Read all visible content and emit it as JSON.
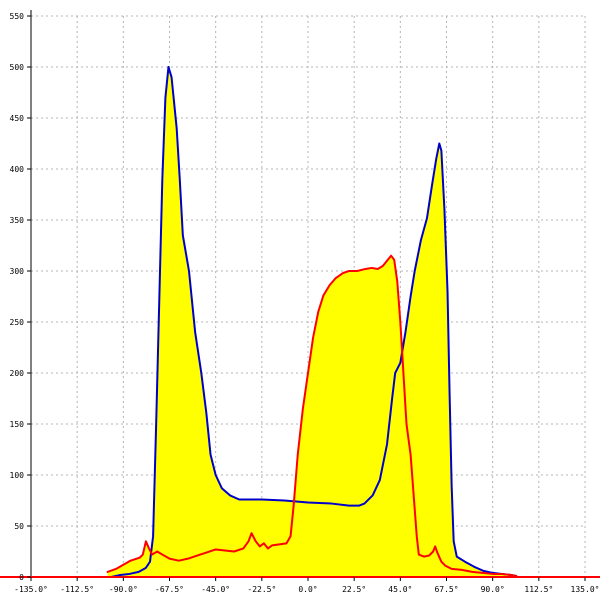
{
  "chart_data": {
    "type": "area",
    "title": "",
    "xlabel": "",
    "ylabel": "",
    "xlim": [
      -135,
      135
    ],
    "ylim": [
      0,
      550
    ],
    "grid": true,
    "legend": "none",
    "x_ticks": [
      {
        "value": -135,
        "label": "-135.0°"
      },
      {
        "value": -112.5,
        "label": "-112.5°"
      },
      {
        "value": -90,
        "label": "-90.0°"
      },
      {
        "value": -67.5,
        "label": "-67.5°"
      },
      {
        "value": -45,
        "label": "-45.0°"
      },
      {
        "value": -22.5,
        "label": "-22.5°"
      },
      {
        "value": 0,
        "label": "0.0°"
      },
      {
        "value": 22.5,
        "label": "22.5°"
      },
      {
        "value": 45,
        "label": "45.0°"
      },
      {
        "value": 67.5,
        "label": "67.5°"
      },
      {
        "value": 90,
        "label": "90.0°"
      },
      {
        "value": 112.5,
        "label": "112.5°"
      },
      {
        "value": 135,
        "label": "135.0°"
      }
    ],
    "y_ticks": [
      {
        "value": 0,
        "label": "0"
      },
      {
        "value": 50,
        "label": "50"
      },
      {
        "value": 100,
        "label": "100"
      },
      {
        "value": 150,
        "label": "150"
      },
      {
        "value": 200,
        "label": "200"
      },
      {
        "value": 250,
        "label": "250"
      },
      {
        "value": 300,
        "label": "300"
      },
      {
        "value": 350,
        "label": "350"
      },
      {
        "value": 400,
        "label": "400"
      },
      {
        "value": 450,
        "label": "450"
      },
      {
        "value": 500,
        "label": "500"
      },
      {
        "value": 550,
        "label": "550"
      }
    ],
    "fill_color": "#ffff00",
    "series": [
      {
        "color": "#0000cc",
        "points": [
          [
            -95.9,
            0
          ],
          [
            -91.5,
            2
          ],
          [
            -87,
            3
          ],
          [
            -82.5,
            5
          ],
          [
            -79,
            9
          ],
          [
            -77,
            15
          ],
          [
            -75.5,
            40
          ],
          [
            -74,
            150
          ],
          [
            -72.5,
            270
          ],
          [
            -71,
            390
          ],
          [
            -69.5,
            470
          ],
          [
            -68,
            500
          ],
          [
            -66.5,
            490
          ],
          [
            -64,
            440
          ],
          [
            -62.5,
            390
          ],
          [
            -61,
            335
          ],
          [
            -58,
            300
          ],
          [
            -55,
            240
          ],
          [
            -52,
            200
          ],
          [
            -49.5,
            160
          ],
          [
            -47.5,
            120
          ],
          [
            -45,
            100
          ],
          [
            -42,
            87
          ],
          [
            -38,
            80
          ],
          [
            -33.5,
            76
          ],
          [
            -22.5,
            76
          ],
          [
            -11.5,
            75
          ],
          [
            0,
            73
          ],
          [
            11.5,
            72
          ],
          [
            20,
            70
          ],
          [
            25,
            70
          ],
          [
            27.5,
            72
          ],
          [
            31.5,
            80
          ],
          [
            35,
            95
          ],
          [
            38.5,
            130
          ],
          [
            41,
            175
          ],
          [
            42.5,
            200
          ],
          [
            45,
            210
          ],
          [
            47.5,
            240
          ],
          [
            50,
            275
          ],
          [
            52,
            300
          ],
          [
            55,
            330
          ],
          [
            58,
            352
          ],
          [
            60.5,
            385
          ],
          [
            62.5,
            410
          ],
          [
            64,
            425
          ],
          [
            65,
            418
          ],
          [
            66.5,
            360
          ],
          [
            68,
            280
          ],
          [
            69,
            180
          ],
          [
            70,
            90
          ],
          [
            71,
            35
          ],
          [
            72.5,
            20
          ],
          [
            76.5,
            15
          ],
          [
            81,
            10
          ],
          [
            85.5,
            6
          ],
          [
            90,
            4
          ],
          [
            94.5,
            3
          ],
          [
            99,
            2
          ],
          [
            101.5,
            1
          ]
        ]
      },
      {
        "color": "#ff0000",
        "points": [
          [
            -97.7,
            5
          ],
          [
            -93.5,
            8
          ],
          [
            -90,
            12
          ],
          [
            -86.5,
            16
          ],
          [
            -82,
            19
          ],
          [
            -80.5,
            22
          ],
          [
            -79,
            35
          ],
          [
            -77.5,
            28
          ],
          [
            -76,
            22
          ],
          [
            -73.5,
            25
          ],
          [
            -71,
            22
          ],
          [
            -67.5,
            18
          ],
          [
            -63,
            16
          ],
          [
            -58.5,
            18
          ],
          [
            -54,
            21
          ],
          [
            -49.5,
            24
          ],
          [
            -45,
            27
          ],
          [
            -40.5,
            26
          ],
          [
            -36,
            25
          ],
          [
            -31.5,
            28
          ],
          [
            -29,
            35
          ],
          [
            -27.5,
            43
          ],
          [
            -25.5,
            35
          ],
          [
            -23.5,
            30
          ],
          [
            -21.5,
            33
          ],
          [
            -19.5,
            28
          ],
          [
            -17.5,
            31
          ],
          [
            -14,
            32
          ],
          [
            -10.5,
            33
          ],
          [
            -8.5,
            40
          ],
          [
            -7,
            70
          ],
          [
            -5,
            120
          ],
          [
            -2.5,
            165
          ],
          [
            0,
            200
          ],
          [
            2.5,
            235
          ],
          [
            5,
            260
          ],
          [
            7.5,
            276
          ],
          [
            10.5,
            286
          ],
          [
            13.5,
            293
          ],
          [
            17,
            298
          ],
          [
            20,
            300
          ],
          [
            24,
            300
          ],
          [
            28,
            302
          ],
          [
            31,
            303
          ],
          [
            34,
            302
          ],
          [
            36.5,
            305
          ],
          [
            38.5,
            310
          ],
          [
            40.5,
            315
          ],
          [
            42,
            311
          ],
          [
            43.5,
            290
          ],
          [
            45,
            250
          ],
          [
            46.5,
            200
          ],
          [
            48,
            150
          ],
          [
            50,
            120
          ],
          [
            51.5,
            80
          ],
          [
            53,
            40
          ],
          [
            54,
            22
          ],
          [
            56.5,
            20
          ],
          [
            59,
            21
          ],
          [
            61,
            25
          ],
          [
            62,
            30
          ],
          [
            63,
            24
          ],
          [
            65,
            15
          ],
          [
            67,
            11
          ],
          [
            70,
            8
          ],
          [
            75,
            7
          ],
          [
            80,
            5
          ],
          [
            85,
            4
          ],
          [
            90,
            3
          ],
          [
            94,
            3
          ],
          [
            99,
            2
          ],
          [
            101.5,
            1
          ]
        ]
      }
    ]
  }
}
